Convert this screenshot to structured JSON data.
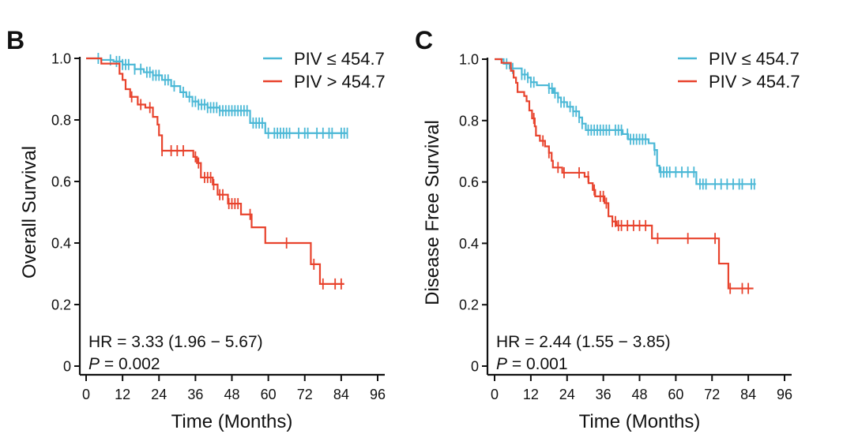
{
  "colors": {
    "low": "#4bb8d6",
    "high": "#e8432d",
    "axis": "#111111"
  },
  "chart_data": [
    {
      "type": "line",
      "subtype": "kaplan-meier step",
      "panel_label": "B",
      "xlabel": "Time (Months)",
      "ylabel": "Overall Survival",
      "xlim": [
        0,
        96
      ],
      "ylim": [
        0,
        1.0
      ],
      "xticks": [
        "0",
        "12",
        "24",
        "36",
        "48",
        "60",
        "72",
        "84",
        "96"
      ],
      "yticks": [
        "0",
        "0.2",
        "0.4",
        "0.6",
        "0.8",
        "1.0"
      ],
      "grid": false,
      "legend_position": "top-right",
      "annotation_hr": "HR = 3.33 (1.96 − 5.67)",
      "annotation_p_label": "P",
      "annotation_p_value": " = 0.002",
      "series": [
        {
          "name": "PIV ≤ 454.7",
          "color_key": "low",
          "steps": [
            [
              0,
              1
            ],
            [
              5,
              0.995
            ],
            [
              9,
              0.99
            ],
            [
              12,
              0.98
            ],
            [
              16,
              0.965
            ],
            [
              19,
              0.955
            ],
            [
              22,
              0.945
            ],
            [
              25,
              0.93
            ],
            [
              28,
              0.91
            ],
            [
              31,
              0.89
            ],
            [
              33,
              0.875
            ],
            [
              35,
              0.86
            ],
            [
              37,
              0.85
            ],
            [
              40,
              0.84
            ],
            [
              44,
              0.83
            ],
            [
              54,
              0.79
            ],
            [
              59,
              0.757
            ]
          ],
          "end": 86,
          "censored": [
            4,
            8,
            10,
            11,
            12,
            13,
            14,
            16,
            18,
            20,
            21,
            22,
            23,
            24,
            26,
            27,
            29,
            32,
            34,
            35,
            36,
            37,
            38,
            39,
            40,
            41,
            42,
            43,
            44,
            45,
            46,
            47,
            48,
            49,
            50,
            51,
            52,
            53,
            55,
            56,
            57,
            58,
            60,
            62,
            63,
            64,
            65,
            66,
            67,
            70,
            72,
            73,
            76,
            78,
            80,
            81,
            84,
            85,
            86
          ]
        },
        {
          "name": "PIV > 454.7",
          "color_key": "high",
          "steps": [
            [
              0,
              1
            ],
            [
              5,
              0.983
            ],
            [
              11,
              0.95
            ],
            [
              12,
              0.93
            ],
            [
              13,
              0.9
            ],
            [
              14.5,
              0.875
            ],
            [
              17,
              0.85
            ],
            [
              19.5,
              0.84
            ],
            [
              22,
              0.81
            ],
            [
              23.5,
              0.785
            ],
            [
              24,
              0.75
            ],
            [
              25,
              0.7
            ],
            [
              35.3,
              0.68
            ],
            [
              36.5,
              0.66
            ],
            [
              37.8,
              0.613
            ],
            [
              41.7,
              0.59
            ],
            [
              43.3,
              0.557
            ],
            [
              46.7,
              0.528
            ],
            [
              51,
              0.493
            ],
            [
              54.5,
              0.451
            ],
            [
              59,
              0.4
            ],
            [
              74,
              0.331
            ],
            [
              77,
              0.267
            ]
          ],
          "end": 85,
          "censored": [
            15,
            18,
            21,
            25,
            28,
            30,
            32,
            36,
            37,
            39,
            40,
            41,
            42,
            44,
            45,
            47,
            48,
            49,
            50,
            54,
            66,
            75,
            78,
            82,
            84
          ]
        }
      ]
    },
    {
      "type": "line",
      "subtype": "kaplan-meier step",
      "panel_label": "C",
      "xlabel": "Time (Months)",
      "ylabel": "Disease Free Survival",
      "xlim": [
        0,
        96
      ],
      "ylim": [
        0,
        1.0
      ],
      "xticks": [
        "0",
        "12",
        "24",
        "36",
        "48",
        "60",
        "72",
        "84",
        "96"
      ],
      "yticks": [
        "0",
        "0.2",
        "0.4",
        "0.6",
        "0.8",
        "1.0"
      ],
      "grid": false,
      "legend_position": "top-right",
      "annotation_hr": "HR = 2.44 (1.55 − 3.85)",
      "annotation_p_label": "P",
      "annotation_p_value": " = 0.001",
      "series": [
        {
          "name": "PIV ≤ 454.7",
          "color_key": "low",
          "steps": [
            [
              0,
              1
            ],
            [
              3,
              0.985
            ],
            [
              5,
              0.97
            ],
            [
              9,
              0.95
            ],
            [
              11,
              0.94
            ],
            [
              12,
              0.925
            ],
            [
              14,
              0.915
            ],
            [
              18,
              0.905
            ],
            [
              19.5,
              0.89
            ],
            [
              21,
              0.875
            ],
            [
              22,
              0.86
            ],
            [
              24,
              0.845
            ],
            [
              26,
              0.83
            ],
            [
              28,
              0.81
            ],
            [
              29,
              0.79
            ],
            [
              30.2,
              0.769
            ],
            [
              42.4,
              0.756
            ],
            [
              44.2,
              0.739
            ],
            [
              51,
              0.726
            ],
            [
              52.9,
              0.704
            ],
            [
              53.8,
              0.653
            ],
            [
              54.6,
              0.632
            ],
            [
              66.8,
              0.593
            ]
          ],
          "end": 86.5,
          "censored": [
            4,
            6,
            9,
            10,
            11,
            12,
            13,
            18,
            19,
            20,
            21,
            22,
            23,
            25,
            26,
            27,
            28,
            29,
            31,
            32,
            33,
            34,
            35,
            36,
            37,
            38,
            40,
            41,
            42,
            44,
            45,
            46,
            47,
            48,
            49,
            50,
            53,
            55,
            56,
            57,
            58,
            60,
            62,
            64,
            66,
            68,
            69,
            70,
            73,
            75,
            77,
            79,
            81,
            82,
            85,
            86
          ]
        },
        {
          "name": "PIV > 454.7",
          "color_key": "high",
          "steps": [
            [
              0,
              1
            ],
            [
              2.3,
              0.988
            ],
            [
              5.4,
              0.962
            ],
            [
              6.3,
              0.94
            ],
            [
              7.1,
              0.923
            ],
            [
              7.6,
              0.893
            ],
            [
              9.8,
              0.88
            ],
            [
              10.6,
              0.863
            ],
            [
              11.5,
              0.833
            ],
            [
              12.4,
              0.807
            ],
            [
              13.3,
              0.781
            ],
            [
              13.7,
              0.751
            ],
            [
              15,
              0.734
            ],
            [
              16.7,
              0.716
            ],
            [
              18,
              0.695
            ],
            [
              18.9,
              0.669
            ],
            [
              19.3,
              0.647
            ],
            [
              22.4,
              0.63
            ],
            [
              29.8,
              0.617
            ],
            [
              31.1,
              0.596
            ],
            [
              32.5,
              0.574
            ],
            [
              33.3,
              0.553
            ],
            [
              36.4,
              0.531
            ],
            [
              37.7,
              0.488
            ],
            [
              39,
              0.471
            ],
            [
              40.4,
              0.458
            ],
            [
              52.1,
              0.416
            ],
            [
              74.3,
              0.334
            ],
            [
              77.4,
              0.253
            ]
          ],
          "end": 85.7,
          "censored": [
            13,
            16,
            18,
            21,
            23,
            28,
            31,
            33,
            35,
            36,
            37,
            39,
            40,
            41,
            42,
            44,
            46,
            48,
            50,
            54,
            64,
            73,
            78,
            82,
            84
          ]
        }
      ]
    }
  ]
}
